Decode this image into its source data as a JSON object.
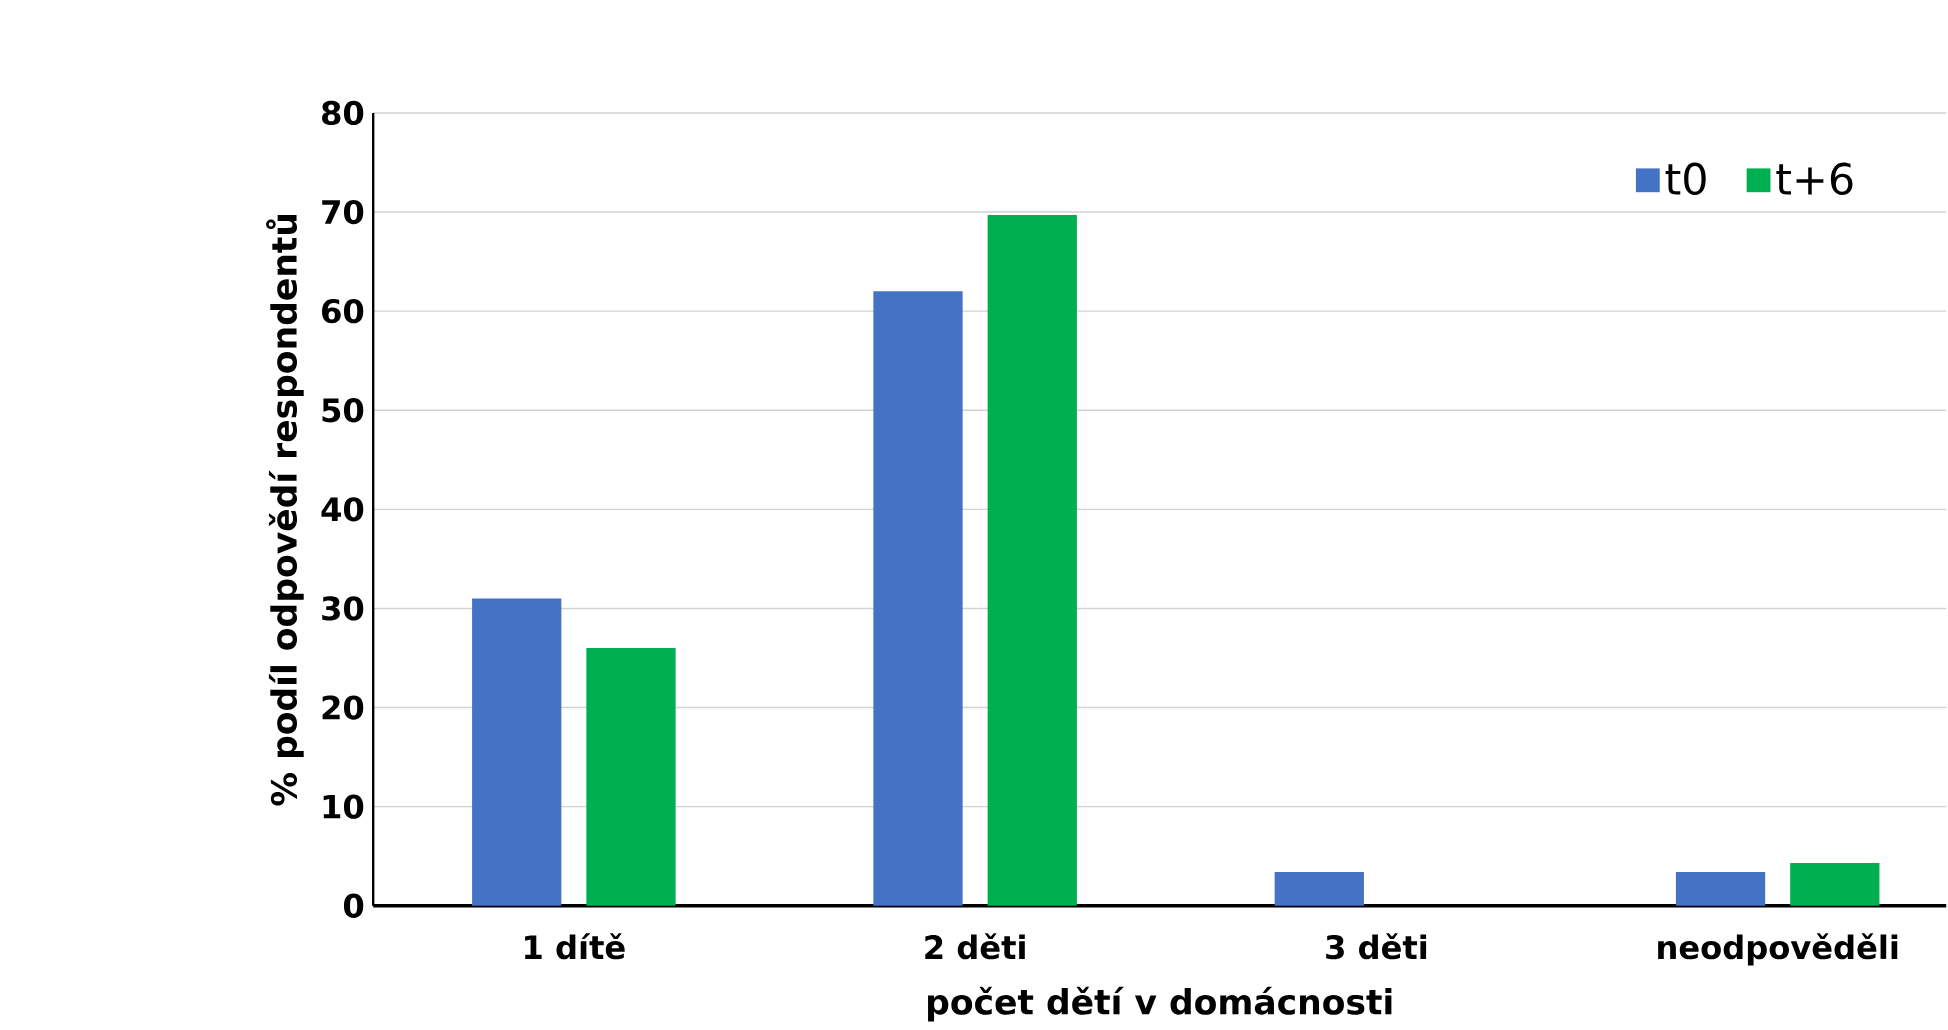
{
  "chart_data": {
    "type": "bar",
    "xlabel": "počet dětí v domácnosti",
    "ylabel": "% podíl odpovědí respondentů",
    "categories": [
      "1 dítě",
      "2 děti",
      "3 děti",
      "neodpověděli"
    ],
    "series": [
      {
        "name": "t0",
        "color": "#4472c4",
        "values": [
          31,
          62,
          3.4,
          3.4
        ]
      },
      {
        "name": "t+6",
        "color": "#00b050",
        "values": [
          26,
          69.7,
          null,
          4.3
        ]
      }
    ],
    "ylim": [
      0,
      80
    ],
    "yticks": [
      0,
      10,
      20,
      30,
      40,
      50,
      60,
      70,
      80
    ],
    "grid": "y",
    "legend": "top right"
  }
}
